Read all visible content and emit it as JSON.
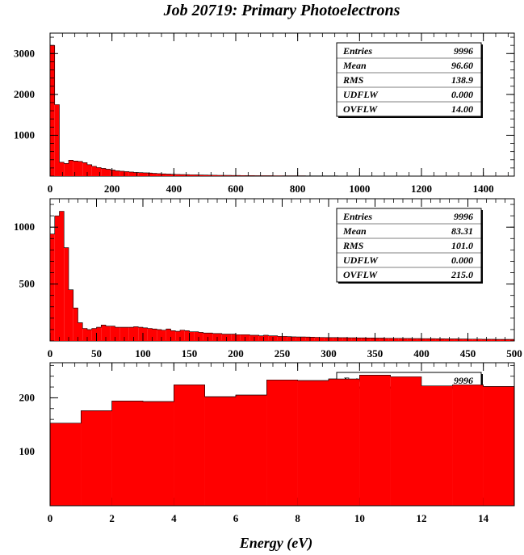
{
  "title": "Job 20719: Primary Photoelectrons",
  "xlabel": "Energy (eV)",
  "colors": {
    "fill": "#ff0000",
    "stroke": "#000000",
    "background": "#ffffff"
  },
  "chart_data": [
    {
      "type": "bar",
      "x_range": [
        0,
        1500
      ],
      "ylim": [
        0,
        3500
      ],
      "x_ticks": [
        "0",
        "200",
        "400",
        "600",
        "800",
        "1000",
        "1200",
        "1400"
      ],
      "y_ticks": [
        "1000",
        "2000",
        "3000"
      ],
      "bin_width": 15,
      "values": [
        3200,
        1750,
        340,
        310,
        390,
        370,
        360,
        330,
        280,
        240,
        210,
        190,
        170,
        150,
        130,
        120,
        110,
        100,
        90,
        85,
        80,
        75,
        68,
        62,
        56,
        50,
        46,
        42,
        38,
        35,
        32,
        30,
        28,
        26,
        24,
        22,
        20,
        19,
        18,
        17,
        16,
        15,
        14,
        13,
        12,
        12,
        11,
        11,
        10,
        10,
        9,
        9,
        8,
        8,
        8,
        7,
        7,
        7,
        6,
        6,
        6,
        6,
        5,
        5,
        5,
        5,
        5,
        4,
        4,
        4,
        4,
        4,
        4,
        3,
        3,
        3,
        3,
        3,
        3,
        3,
        3,
        3,
        2,
        2,
        2,
        2,
        2,
        2,
        2,
        2,
        2,
        2,
        2,
        2,
        2,
        2,
        2,
        2,
        2,
        2
      ],
      "stats": [
        {
          "label": "Entries",
          "value": "9996"
        },
        {
          "label": "Mean",
          "value": "96.60"
        },
        {
          "label": "RMS",
          "value": "138.9"
        },
        {
          "label": "UDFLW",
          "value": "0.000"
        },
        {
          "label": "OVFLW",
          "value": "14.00"
        }
      ]
    },
    {
      "type": "bar",
      "x_range": [
        0,
        500
      ],
      "ylim": [
        0,
        1250
      ],
      "x_ticks": [
        "0",
        "50",
        "100",
        "150",
        "200",
        "250",
        "300",
        "350",
        "400",
        "450",
        "500"
      ],
      "y_ticks": [
        "500",
        "1000"
      ],
      "bin_width": 5,
      "values": [
        940,
        1100,
        1140,
        820,
        450,
        290,
        160,
        110,
        100,
        110,
        120,
        140,
        130,
        130,
        120,
        120,
        120,
        120,
        125,
        120,
        115,
        110,
        105,
        100,
        95,
        105,
        90,
        85,
        95,
        90,
        80,
        80,
        75,
        70,
        70,
        65,
        65,
        60,
        60,
        60,
        55,
        55,
        55,
        50,
        50,
        45,
        50,
        45,
        45,
        40,
        40,
        38,
        36,
        35,
        35,
        34,
        33,
        32,
        31,
        30,
        30,
        30,
        29,
        29,
        28,
        28,
        27,
        27,
        26,
        26,
        25,
        25,
        24,
        24,
        23,
        23,
        22,
        22,
        21,
        21,
        20,
        20,
        20,
        19,
        19,
        18,
        18,
        18,
        17,
        17,
        16,
        16,
        16,
        15,
        15,
        15,
        14,
        14,
        14,
        14
      ],
      "stats": [
        {
          "label": "Entries",
          "value": "9996"
        },
        {
          "label": "Mean",
          "value": "83.31"
        },
        {
          "label": "RMS",
          "value": "101.0"
        },
        {
          "label": "UDFLW",
          "value": "0.000"
        },
        {
          "label": "OVFLW",
          "value": "215.0"
        }
      ]
    },
    {
      "type": "bar",
      "x_range": [
        0,
        15
      ],
      "ylim": [
        0,
        265
      ],
      "x_ticks": [
        "0",
        "2",
        "4",
        "6",
        "8",
        "10",
        "12",
        "14"
      ],
      "y_ticks": [
        "100",
        "200"
      ],
      "bin_width": 1,
      "values": [
        153,
        176,
        194,
        193,
        224,
        202,
        205,
        233,
        232,
        235,
        242,
        239,
        222,
        224,
        221
      ],
      "stats": [
        {
          "label": "Entries",
          "value": "9996"
        }
      ]
    }
  ]
}
